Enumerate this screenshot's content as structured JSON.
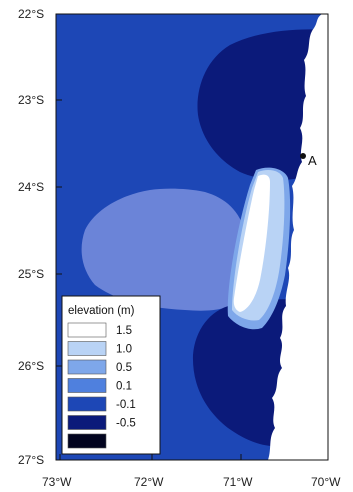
{
  "map": {
    "lat_labels": [
      "22°S",
      "23°S",
      "24°S",
      "25°S",
      "26°S",
      "27°S"
    ],
    "lon_labels": [
      "73°W",
      "72°W",
      "71°W",
      "70°W"
    ],
    "point_label": "A"
  },
  "legend": {
    "title": "elevation (m)",
    "items": [
      {
        "label": "1.5",
        "color": "#ffffff"
      },
      {
        "label": "1.0",
        "color": "#b9d3f5"
      },
      {
        "label": "0.5",
        "color": "#7ea7ea"
      },
      {
        "label": "0.1",
        "color": "#4f80de"
      },
      {
        "label": "-0.1",
        "color": "#1d47b6"
      },
      {
        "label": "-0.5",
        "color": "#0b1a7a"
      },
      {
        "label": "",
        "color": "#02041f"
      }
    ]
  },
  "colors": {
    "sea_background": "#1d47b6",
    "land": "#ffffff",
    "positive_anomaly_offshore": "#6b84d8",
    "negative_anomaly": "#0b1a7a",
    "coastal_peak": "#ffffff",
    "coastal_high": "#b9d3f5",
    "coastal_mid": "#7ea7ea"
  }
}
